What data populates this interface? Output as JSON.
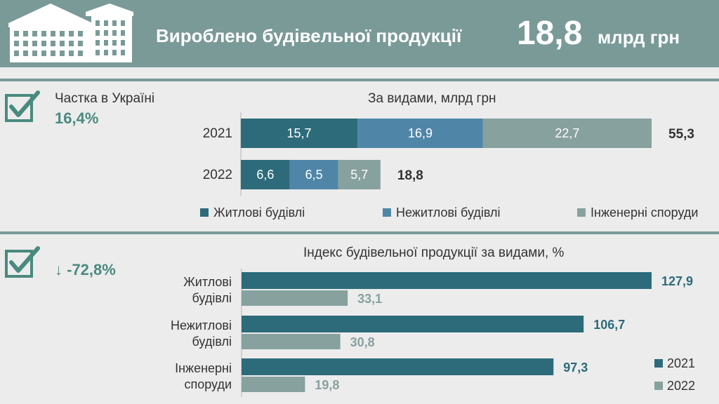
{
  "header": {
    "title": "Вироблено будівельної продукції",
    "value": "18,8",
    "unit": "млрд грн"
  },
  "summary": {
    "share_label": "Частка в Україні",
    "share_value": "16,4%",
    "change_arrow": "↓",
    "change_value": "-72,8%"
  },
  "colors": {
    "header_bg": "#7a9a98",
    "residential": "#2d6b7a",
    "nonresidential": "#4f86a8",
    "engineering": "#87a19e",
    "accent_text": "#4a8a7e",
    "year2022_bar": "#87a19e"
  },
  "chart_data": [
    {
      "type": "bar",
      "orientation": "horizontal",
      "stacked": true,
      "title": "За видами, млрд грн",
      "categories": [
        "2021",
        "2022"
      ],
      "series": [
        {
          "name": "Житлові будівлі",
          "values": [
            15.7,
            6.6
          ],
          "labels": [
            "15,7",
            "6,6"
          ]
        },
        {
          "name": "Нежитлові будівлі",
          "values": [
            16.9,
            6.5
          ],
          "labels": [
            "16,9",
            "6,5"
          ]
        },
        {
          "name": "Інженерні споруди",
          "values": [
            22.7,
            5.7
          ],
          "labels": [
            "22,7",
            "5,7"
          ]
        }
      ],
      "totals": [
        55.3,
        18.8
      ],
      "total_labels": [
        "55,3",
        "18,8"
      ],
      "legend": "bottom"
    },
    {
      "type": "bar",
      "orientation": "horizontal",
      "title": "Індекс будівельної продукції за видами, %",
      "categories": [
        [
          "Житлові",
          "будівлі"
        ],
        [
          "Нежитлові",
          "будівлі"
        ],
        [
          "Інженерні",
          "споруди"
        ]
      ],
      "series": [
        {
          "name": "2021",
          "values": [
            127.9,
            106.7,
            97.3
          ],
          "labels": [
            "127,9",
            "106,7",
            "97,3"
          ]
        },
        {
          "name": "2022",
          "values": [
            33.1,
            30.8,
            19.8
          ],
          "labels": [
            "33,1",
            "30,8",
            "19,8"
          ]
        }
      ],
      "legend": "bottom-right"
    }
  ]
}
